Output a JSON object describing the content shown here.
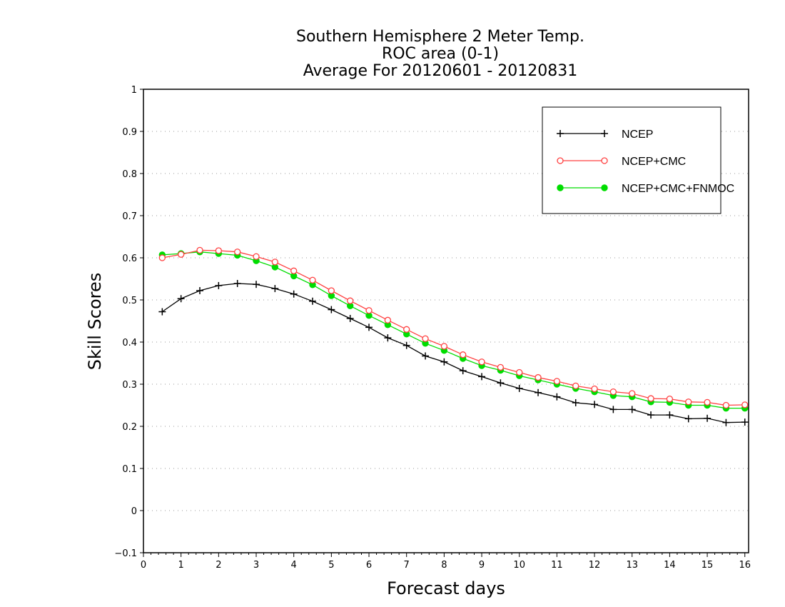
{
  "chart_data": {
    "type": "line",
    "title": [
      "Southern Hemisphere 2 Meter Temp.",
      "ROC area (0-1)",
      "Average For 20120601 - 20120831"
    ],
    "xlabel": "Forecast days",
    "ylabel": "Skill Scores",
    "xlim": [
      0,
      16.1
    ],
    "ylim": [
      -0.1,
      1
    ],
    "xticks": [
      "0",
      "1",
      "2",
      "3",
      "4",
      "5",
      "6",
      "7",
      "8",
      "9",
      "10",
      "11",
      "12",
      "13",
      "14",
      "15",
      "16"
    ],
    "yticks": [
      "−0.1",
      "0",
      "0.1",
      "0.2",
      "0.3",
      "0.4",
      "0.5",
      "0.6",
      "0.7",
      "0.8",
      "0.9",
      "1"
    ],
    "grid": true,
    "legend_position": "top-right",
    "x": [
      0.5,
      1,
      1.5,
      2,
      2.5,
      3,
      3.5,
      4,
      4.5,
      5,
      5.5,
      6,
      6.5,
      7,
      7.5,
      8,
      8.5,
      9,
      9.5,
      10,
      10.5,
      11,
      11.5,
      12,
      12.5,
      13,
      13.5,
      14,
      14.5,
      15,
      15.5,
      16
    ],
    "series": [
      {
        "name": "NCEP",
        "color": "#000000",
        "marker": "plus",
        "values": [
          0.472,
          0.503,
          0.522,
          0.534,
          0.539,
          0.537,
          0.527,
          0.514,
          0.497,
          0.477,
          0.456,
          0.435,
          0.41,
          0.392,
          0.367,
          0.353,
          0.332,
          0.318,
          0.303,
          0.29,
          0.28,
          0.27,
          0.256,
          0.252,
          0.24,
          0.24,
          0.227,
          0.227,
          0.218,
          0.219,
          0.209,
          0.21
        ]
      },
      {
        "name": "NCEP+CMC",
        "color": "#ff4040",
        "marker": "open-circle",
        "values": [
          0.6,
          0.608,
          0.618,
          0.617,
          0.614,
          0.603,
          0.59,
          0.569,
          0.547,
          0.522,
          0.498,
          0.475,
          0.452,
          0.43,
          0.408,
          0.39,
          0.37,
          0.353,
          0.34,
          0.328,
          0.316,
          0.307,
          0.296,
          0.289,
          0.282,
          0.278,
          0.266,
          0.265,
          0.258,
          0.257,
          0.25,
          0.251
        ]
      },
      {
        "name": "NCEP+CMC+FNMOC",
        "color": "#00dd00",
        "marker": "filled-circle",
        "values": [
          0.607,
          0.61,
          0.614,
          0.61,
          0.606,
          0.593,
          0.578,
          0.557,
          0.536,
          0.51,
          0.486,
          0.463,
          0.441,
          0.419,
          0.397,
          0.38,
          0.361,
          0.344,
          0.333,
          0.32,
          0.31,
          0.3,
          0.29,
          0.282,
          0.273,
          0.27,
          0.258,
          0.257,
          0.25,
          0.25,
          0.243,
          0.243
        ]
      }
    ]
  }
}
